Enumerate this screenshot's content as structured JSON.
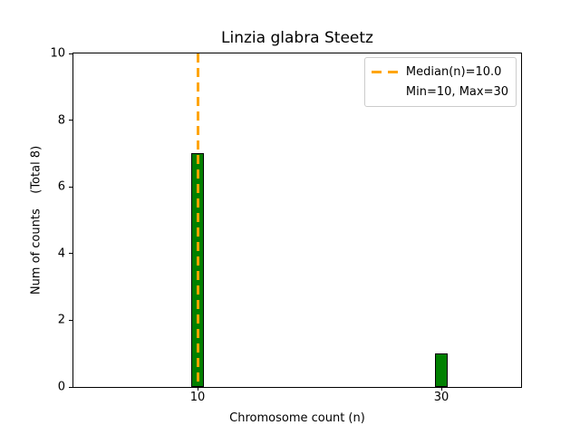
{
  "chart_data": {
    "type": "bar",
    "title": "Linzia glabra Steetz",
    "xlabel": "Chromosome count (n)",
    "ylabel": "Num of counts    (Total 8)",
    "bars": [
      {
        "x": 10,
        "count": 7
      },
      {
        "x": 30,
        "count": 1
      }
    ],
    "bar_width_units": 1.1,
    "bar_color": "#008000",
    "bar_edge_color": "#000000",
    "median_line": {
      "x": 10,
      "style": "dashed",
      "color": "#FFA500"
    },
    "legend": {
      "position": "upper right",
      "entries": [
        "Median(n)=10.0",
        "Min=10, Max=30"
      ]
    },
    "xlim": [
      -0.19,
      36.54
    ],
    "ylim": [
      0,
      10
    ],
    "xticks": [
      10,
      30
    ],
    "yticks": [
      0,
      2,
      4,
      6,
      8,
      10
    ],
    "background": "#ffffff",
    "grid": false
  }
}
